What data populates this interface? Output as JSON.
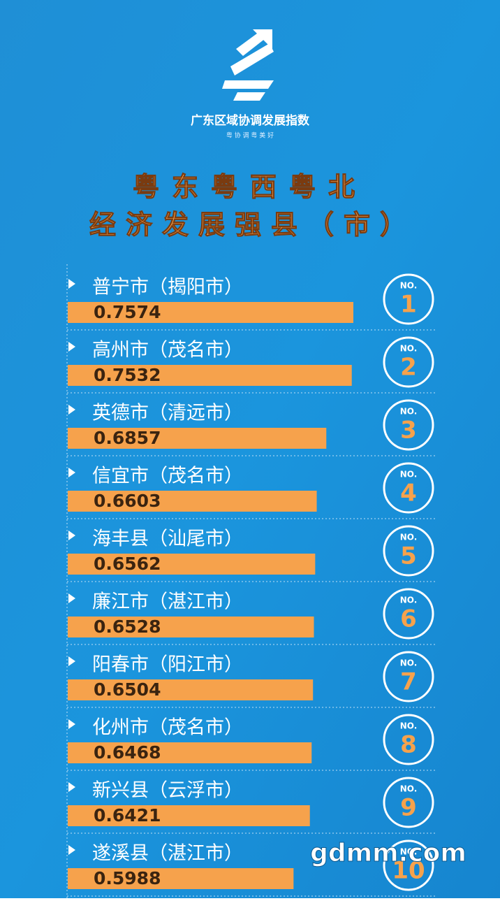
{
  "logo_text": "广东区域协调发展指数",
  "logo_subtext": "粤 协 调 粤 美 好",
  "watermark": "gdmm.com",
  "chart_data": {
    "type": "bar",
    "orientation": "horizontal",
    "title": "粤东粤西粤北",
    "subtitle": "经济发展强县（市）",
    "categories": [
      "普宁市（揭阳市）",
      "高州市（茂名市）",
      "英德市（清远市）",
      "信宜市（茂名市）",
      "海丰县（汕尾市）",
      "廉江市（湛江市）",
      "阳春市（阳江市）",
      "化州市（茂名市）",
      "新兴县（云浮市）",
      "遂溪县（湛江市）"
    ],
    "values": [
      0.7574,
      0.7532,
      0.6857,
      0.6603,
      0.6562,
      0.6528,
      0.6504,
      0.6468,
      0.6421,
      0.5988
    ],
    "rank_label": "NO.",
    "ranks": [
      "1",
      "2",
      "3",
      "4",
      "5",
      "6",
      "7",
      "8",
      "9",
      "10"
    ],
    "color": "#f6a24c",
    "xlim": [
      0,
      1
    ]
  }
}
